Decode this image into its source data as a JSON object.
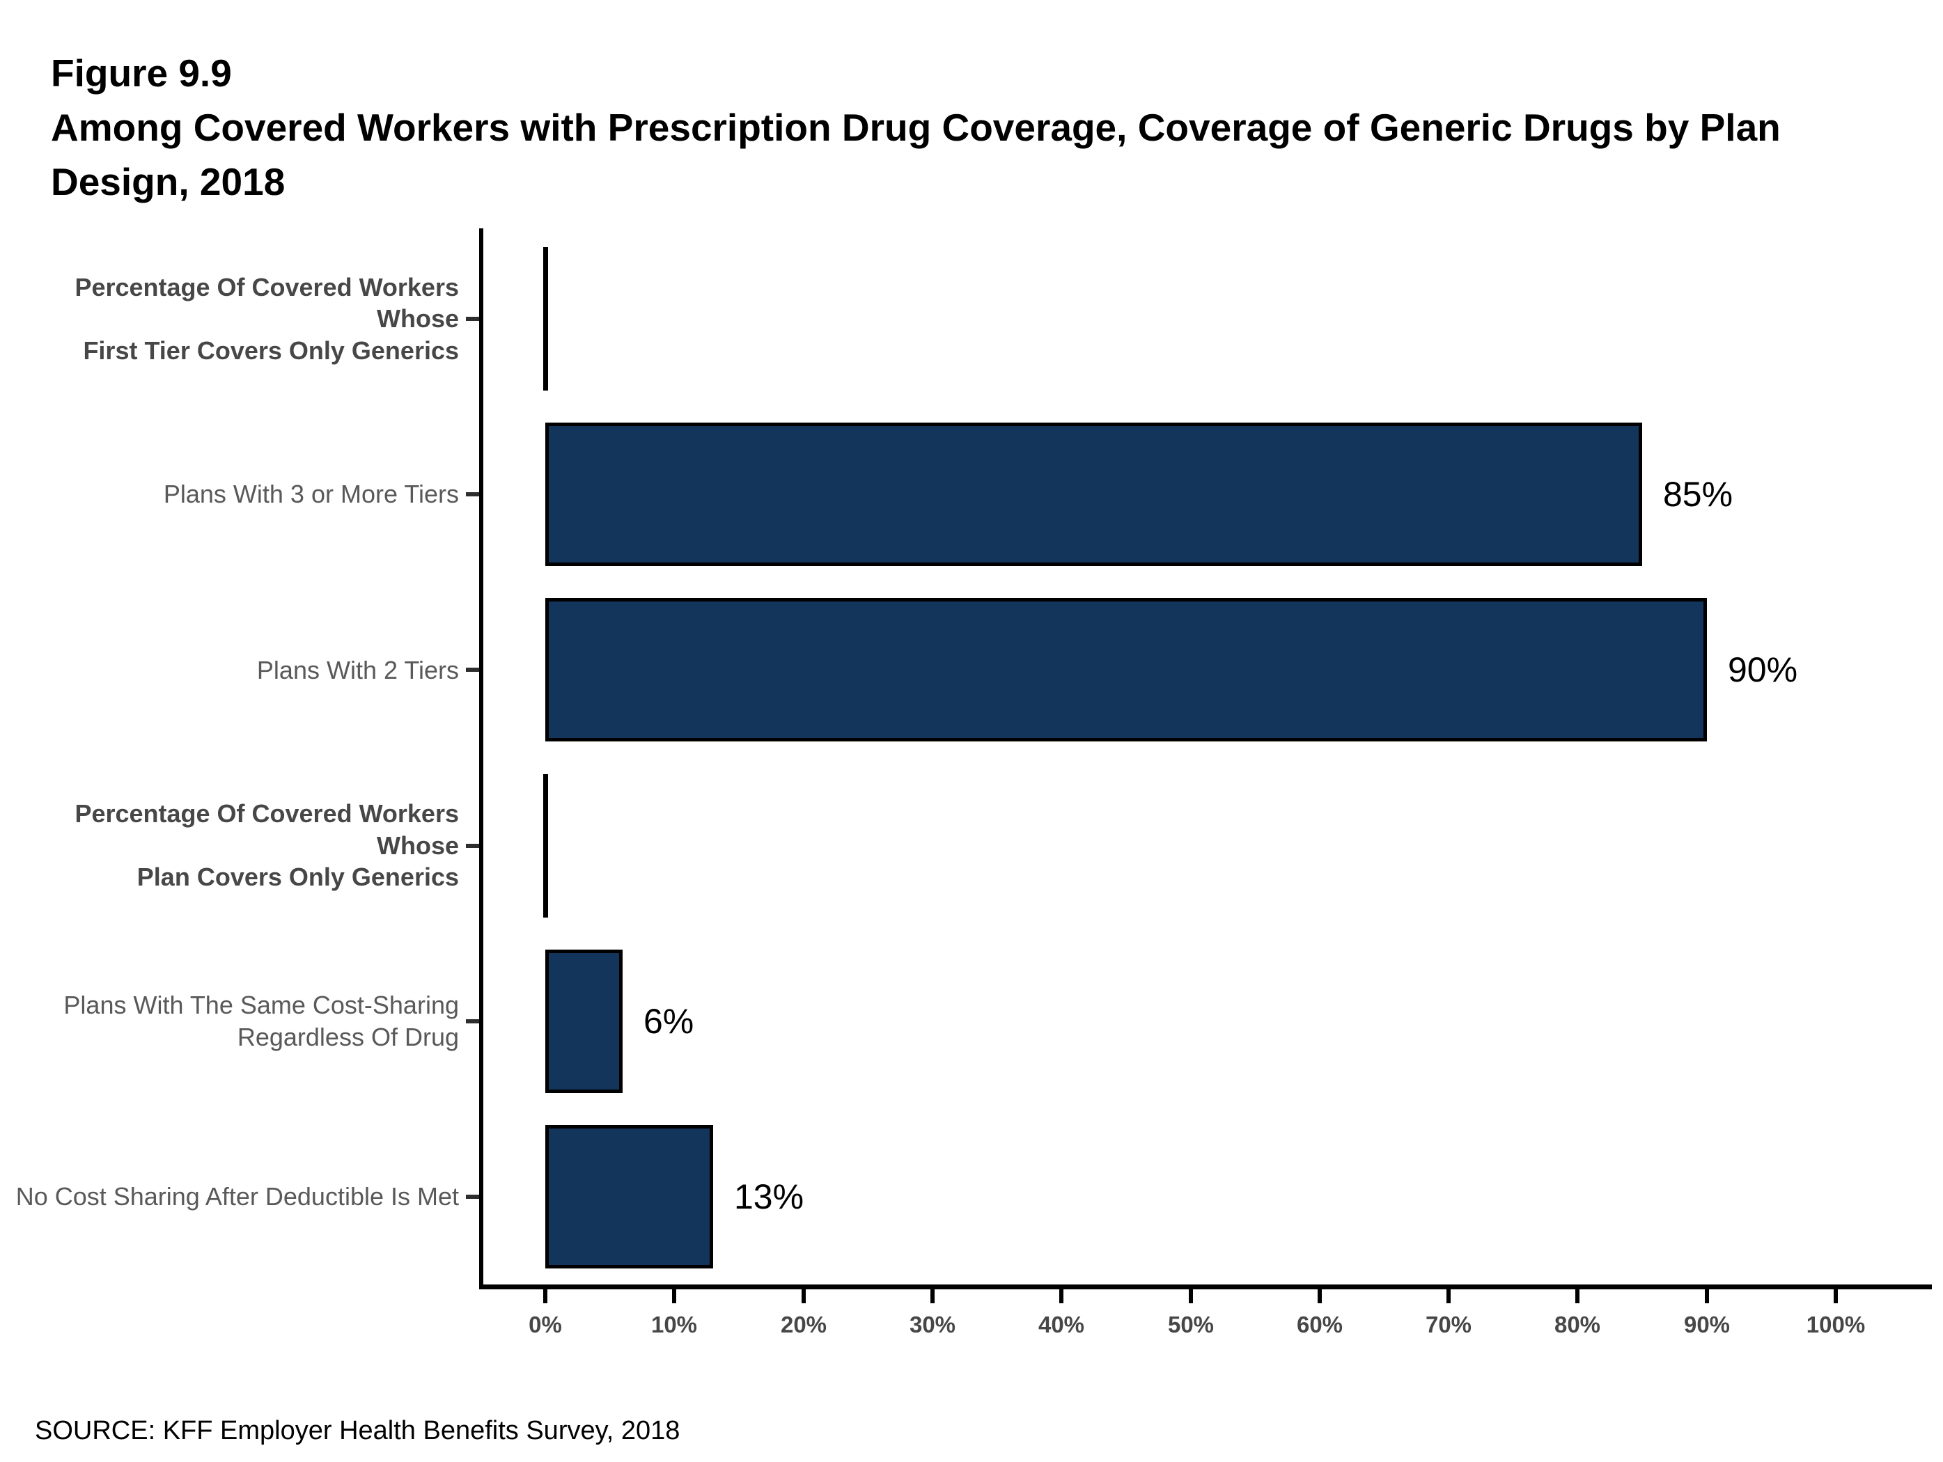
{
  "figure": {
    "title": "Figure 9.9",
    "subtitle_lines": [
      "Among Covered Workers with Prescription Drug Coverage, Coverage of Generic Drugs by Plan",
      "Design, 2018"
    ],
    "source": "SOURCE: KFF Employer Health Benefits Survey, 2018"
  },
  "chart_data": {
    "type": "bar",
    "orientation": "horizontal",
    "title": "Among Covered Workers with Prescription Drug Coverage, Coverage of Generic Drugs by Plan Design, 2018",
    "xlim": [
      0,
      100
    ],
    "x_ticks": [
      "0%",
      "10%",
      "20%",
      "30%",
      "40%",
      "50%",
      "60%",
      "70%",
      "80%",
      "90%",
      "100%"
    ],
    "grid": false,
    "legend": false,
    "bar_color": "#14355B",
    "bar_border_color": "#000000",
    "rows": [
      {
        "label": "Percentage Of Covered Workers Whose\nFirst Tier Covers Only Generics",
        "header": true,
        "value": 0,
        "value_label": ""
      },
      {
        "label": "Plans With 3 or More Tiers",
        "header": false,
        "value": 85,
        "value_label": "85%"
      },
      {
        "label": "Plans With 2 Tiers",
        "header": false,
        "value": 90,
        "value_label": "90%"
      },
      {
        "label": "Percentage Of Covered Workers Whose\nPlan Covers Only Generics",
        "header": true,
        "value": 0,
        "value_label": ""
      },
      {
        "label": "Plans With The Same Cost-Sharing\nRegardless Of Drug",
        "header": false,
        "value": 6,
        "value_label": "6%"
      },
      {
        "label": "No Cost Sharing After Deductible Is Met",
        "header": false,
        "value": 13,
        "value_label": "13%"
      }
    ]
  }
}
